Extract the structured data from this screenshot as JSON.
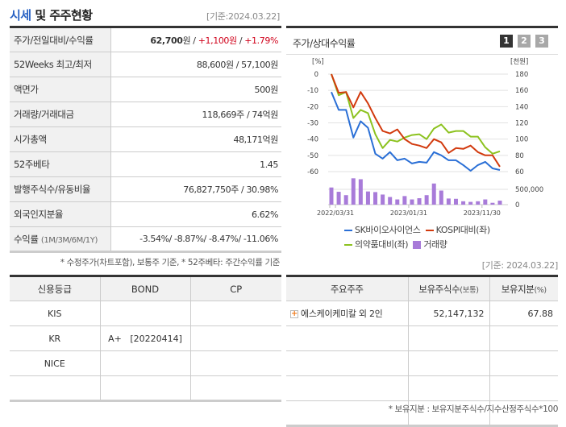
{
  "header": {
    "title_accent": "시세",
    "title_rest": " 및 주주현황",
    "as_of": "[기준:2024.03.22]"
  },
  "info": {
    "rows": [
      {
        "label": "주가/전일대비/수익률",
        "price": "62,700",
        "price_unit": "원",
        "sep": " / ",
        "change": "+1,100원",
        "sep2": " / ",
        "rate": "+1.79%"
      },
      {
        "label": "52Weeks 최고/최저",
        "value": "88,600원 / 57,100원"
      },
      {
        "label": "액면가",
        "value": "500원"
      },
      {
        "label": "거래량/거래대금",
        "value": "118,669주 / 74억원"
      },
      {
        "label": "시가총액",
        "value": "48,171억원"
      },
      {
        "label": "52주베타",
        "value": "1.45"
      },
      {
        "label": "발행주식수/유동비율",
        "value": "76,827,750주 / 30.98%"
      },
      {
        "label": "외국인지분율",
        "value": "6.62%"
      },
      {
        "label": "수익률",
        "label_sub": "(1M/3M/6M/1Y)",
        "value": "-3.54%/ -8.87%/ -8.47%/ -11.06%"
      }
    ],
    "footnote": "* 수정주가(차트포함), 보통주 기준, * 52주베타: 주간수익률 기준"
  },
  "chart_panel": {
    "title": "주가/상대수익률",
    "tabs": [
      "1",
      "2",
      "3"
    ],
    "active_tab": 0,
    "left_unit": "[%]",
    "right_unit": "[천원]",
    "legend": [
      {
        "label": "SK바이오사이언스",
        "color": "#2a6fd6"
      },
      {
        "label": "KOSPI대비(좌)",
        "color": "#d23a0e"
      },
      {
        "label": "의약품대비(좌)",
        "color": "#8cc21f"
      },
      {
        "label": "거래량",
        "color": "#a87bd9"
      }
    ]
  },
  "chart_data": {
    "type": "line",
    "title": "주가/상대수익률",
    "x_tick_labels": [
      "2022/03/31",
      "2023/01/31",
      "2023/11/30"
    ],
    "left_axis": {
      "label": "[%]",
      "ticks": [
        0,
        -10,
        -20,
        -30,
        -40,
        -50,
        -60
      ],
      "range": [
        -60,
        0
      ]
    },
    "right_axis": {
      "label": "[천원]",
      "ticks": [
        180,
        160,
        140,
        120,
        100,
        80,
        60
      ],
      "range": [
        60,
        180
      ]
    },
    "volume_axis": {
      "ticks": [
        "500,000",
        "0"
      ]
    },
    "grid": true,
    "legend_position": "bottom",
    "series": [
      {
        "name": "SK바이오사이언스",
        "axis": "right",
        "color": "#2a6fd6",
        "values_pct_scale": [
          -11,
          -22,
          -22,
          -39,
          -29,
          -33,
          -49,
          -52,
          -48,
          -53,
          -52,
          -55,
          -54,
          -54.5,
          -48,
          -50,
          -53,
          -53,
          -56,
          -59.5,
          -56,
          -54,
          -58,
          -59
        ]
      },
      {
        "name": "KOSPI대비(좌)",
        "axis": "left",
        "color": "#d23a0e",
        "values": [
          0,
          -11.5,
          -11,
          -20.5,
          -11,
          -18,
          -27,
          -35,
          -36.5,
          -34,
          -40,
          -43,
          -44,
          -45.5,
          -40,
          -42,
          -48.5,
          -45.5,
          -46,
          -44,
          -48,
          -50,
          -50,
          -57
        ]
      },
      {
        "name": "의약품대비(좌)",
        "axis": "left",
        "color": "#8cc21f",
        "values": [
          0,
          -13,
          -11,
          -27,
          -22,
          -24,
          -37,
          -45.5,
          -40.5,
          -41.5,
          -39,
          -37.5,
          -37,
          -40,
          -33.5,
          -31,
          -36,
          -35,
          -35,
          -38.5,
          -38.5,
          -45,
          -49,
          -47.5
        ]
      },
      {
        "name": "거래량",
        "type": "bar",
        "color": "#a87bd9",
        "values": [
          560000,
          420000,
          310000,
          860000,
          830000,
          430000,
          410000,
          330000,
          250000,
          170000,
          280000,
          170000,
          210000,
          310000,
          690000,
          460000,
          200000,
          190000,
          110000,
          90000,
          110000,
          170000,
          60000,
          130000
        ]
      }
    ]
  },
  "credit": {
    "headers": [
      "신용등급",
      "BOND",
      "CP"
    ],
    "rows": [
      [
        "KIS",
        "",
        ""
      ],
      [
        "KR",
        "A+   [20220414]",
        ""
      ],
      [
        "NICE",
        "",
        ""
      ],
      [
        "",
        "",
        ""
      ]
    ]
  },
  "holders": {
    "as_of": "[기준: 2024.03.22]",
    "headers": [
      "주요주주",
      "보유주식수",
      "(보통)",
      "보유지분",
      "(%)"
    ],
    "rows": [
      {
        "name": "에스케이케미칼 외 2인",
        "shares": "52,147,132",
        "pct": "67.88"
      },
      {
        "name": "",
        "shares": "",
        "pct": ""
      },
      {
        "name": "",
        "shares": "",
        "pct": ""
      },
      {
        "name": "",
        "shares": "",
        "pct": ""
      },
      {
        "name": "",
        "shares": "",
        "pct": ""
      }
    ],
    "footnote": "* 보유지분 : 보유지분주식수/지수산정주식수*100"
  }
}
